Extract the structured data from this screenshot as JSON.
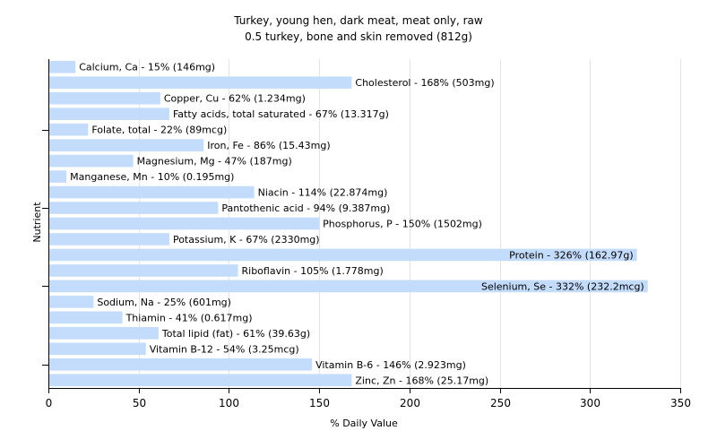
{
  "chart_data": {
    "type": "bar",
    "orientation": "horizontal",
    "title": "Turkey, young hen, dark meat, meat only, raw",
    "subtitle": "0.5 turkey, bone and skin removed (812g)",
    "xlabel": "% Daily Value",
    "ylabel": "Nutrient",
    "xlim": [
      0,
      350
    ],
    "xticks": [
      0,
      50,
      100,
      150,
      200,
      250,
      300,
      350
    ],
    "grid": true,
    "bar_color": "#c4dcfc",
    "categories": [
      "Calcium, Ca",
      "Cholesterol",
      "Copper, Cu",
      "Fatty acids, total saturated",
      "Folate, total",
      "Iron, Fe",
      "Magnesium, Mg",
      "Manganese, Mn",
      "Niacin",
      "Pantothenic acid",
      "Phosphorus, P",
      "Potassium, K",
      "Protein",
      "Riboflavin",
      "Selenium, Se",
      "Sodium, Na",
      "Thiamin",
      "Total lipid (fat)",
      "Vitamin B-12",
      "Vitamin B-6",
      "Zinc, Zn"
    ],
    "values": [
      15,
      168,
      62,
      67,
      22,
      86,
      47,
      10,
      114,
      94,
      150,
      67,
      326,
      105,
      332,
      25,
      41,
      61,
      54,
      146,
      168
    ],
    "labels": [
      "Calcium, Ca - 15% (146mg)",
      "Cholesterol - 168% (503mg)",
      "Copper, Cu - 62% (1.234mg)",
      "Fatty acids, total saturated - 67% (13.317g)",
      "Folate, total - 22% (89mcg)",
      "Iron, Fe - 86% (15.43mg)",
      "Magnesium, Mg - 47% (187mg)",
      "Manganese, Mn - 10% (0.195mg)",
      "Niacin - 114% (22.874mg)",
      "Pantothenic acid - 94% (9.387mg)",
      "Phosphorus, P - 150% (1502mg)",
      "Potassium, K - 67% (2330mg)",
      "Protein - 326% (162.97g)",
      "Riboflavin - 105% (1.778mg)",
      "Selenium, Se - 332% (232.2mcg)",
      "Sodium, Na - 25% (601mg)",
      "Thiamin - 41% (0.617mg)",
      "Total lipid (fat) - 61% (39.63g)",
      "Vitamin B-12 - 54% (3.25mcg)",
      "Vitamin B-6 - 146% (2.923mg)",
      "Zinc, Zn - 168% (25.17mg)"
    ]
  }
}
